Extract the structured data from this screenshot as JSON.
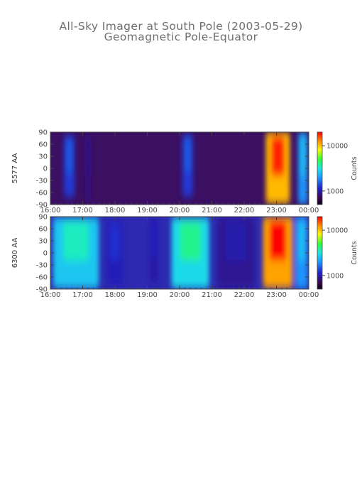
{
  "title": "All-Sky Imager at South Pole (2003-05-29)",
  "subtitle": "Geomagnetic Pole-Equator",
  "chart_data": [
    {
      "type": "heatmap",
      "ylabel": "5577 AA",
      "x_ticks": [
        "16:00",
        "17:00",
        "18:00",
        "19:00",
        "20:00",
        "21:00",
        "22:00",
        "23:00",
        "00:00"
      ],
      "xlim": [
        "16:00",
        "00:00"
      ],
      "y_ticks": [
        "90",
        "60",
        "30",
        "0",
        "-30",
        "-60",
        "-90"
      ],
      "ylim": [
        -90,
        90
      ],
      "colorbar": {
        "label": "Counts",
        "scale": "log",
        "ticks": [
          "10000",
          "1000"
        ],
        "range": [
          500,
          20000
        ]
      },
      "features": [
        {
          "t_start": "16:25",
          "t_end": "16:45",
          "lat_min": -72,
          "lat_max": 82,
          "peak_counts": 1500
        },
        {
          "t_start": "17:05",
          "t_end": "17:15",
          "lat_min": -85,
          "lat_max": 85,
          "peak_counts": 900
        },
        {
          "t_start": "20:05",
          "t_end": "20:25",
          "lat_min": -70,
          "lat_max": 85,
          "peak_counts": 1500
        },
        {
          "t_start": "22:40",
          "t_end": "23:25",
          "lat_min": -88,
          "lat_max": 90,
          "peak_counts": 18000
        },
        {
          "t_start": "23:40",
          "t_end": "23:58",
          "lat_min": -90,
          "lat_max": 90,
          "peak_counts": 2500
        }
      ]
    },
    {
      "type": "heatmap",
      "ylabel": "6300 AA",
      "x_ticks": [
        "16:00",
        "17:00",
        "18:00",
        "19:00",
        "20:00",
        "21:00",
        "22:00",
        "23:00",
        "00:00"
      ],
      "xlim": [
        "16:00",
        "00:00"
      ],
      "y_ticks": [
        "90",
        "60",
        "30",
        "0",
        "-30",
        "-60",
        "-90"
      ],
      "ylim": [
        -90,
        90
      ],
      "colorbar": {
        "label": "Counts",
        "scale": "log",
        "ticks": [
          "10000",
          "1000"
        ],
        "range": [
          500,
          20000
        ]
      },
      "features": [
        {
          "t_start": "16:05",
          "t_end": "17:30",
          "lat_min": -88,
          "lat_max": 88,
          "peak_counts": 3500
        },
        {
          "t_start": "17:45",
          "t_end": "18:15",
          "lat_min": -80,
          "lat_max": 80,
          "peak_counts": 1200
        },
        {
          "t_start": "19:05",
          "t_end": "19:20",
          "lat_min": -75,
          "lat_max": 85,
          "peak_counts": 1100
        },
        {
          "t_start": "19:45",
          "t_end": "20:55",
          "lat_min": -88,
          "lat_max": 88,
          "peak_counts": 4000
        },
        {
          "t_start": "21:10",
          "t_end": "22:20",
          "lat_min": -88,
          "lat_max": 88,
          "peak_counts": 1000
        },
        {
          "t_start": "22:35",
          "t_end": "23:30",
          "lat_min": -88,
          "lat_max": 90,
          "peak_counts": 20000
        },
        {
          "t_start": "23:35",
          "t_end": "23:58",
          "lat_min": -90,
          "lat_max": 90,
          "peak_counts": 2500
        }
      ]
    }
  ]
}
